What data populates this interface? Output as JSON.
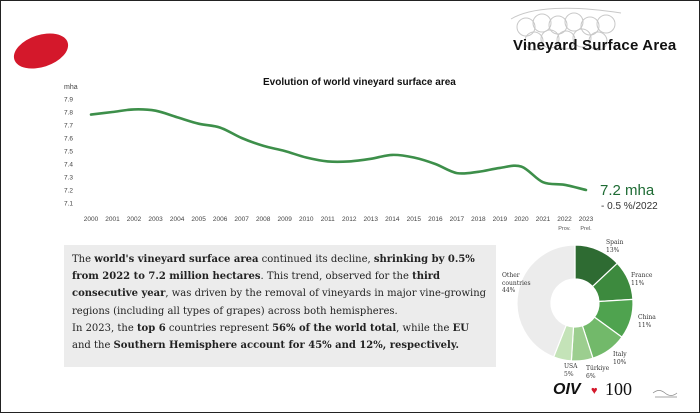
{
  "header": {
    "title": "Vineyard Surface Area"
  },
  "chart_data": {
    "type": "line",
    "title": "Evolution of world vineyard surface area",
    "ylabel": "mha",
    "xlabel": "",
    "x": [
      "2000",
      "2001",
      "2002",
      "2003",
      "2004",
      "2005",
      "2006",
      "2007",
      "2008",
      "2009",
      "2010",
      "2011",
      "2012",
      "2013",
      "2014",
      "2015",
      "2016",
      "2017",
      "2018",
      "2019",
      "2020",
      "2021",
      "2022",
      "2023"
    ],
    "x_sublabels": {
      "2022": "Prov.",
      "2023": "Prel."
    },
    "series": [
      {
        "values": [
          7.78,
          7.8,
          7.82,
          7.81,
          7.76,
          7.71,
          7.68,
          7.6,
          7.54,
          7.5,
          7.45,
          7.42,
          7.42,
          7.44,
          7.47,
          7.45,
          7.4,
          7.33,
          7.34,
          7.37,
          7.38,
          7.26,
          7.24,
          7.2
        ],
        "color": "#3d8f4a"
      }
    ],
    "ylim": [
      7.1,
      7.9
    ],
    "yticks": [
      "7.1",
      "7.2",
      "7.3",
      "7.4",
      "7.5",
      "7.6",
      "7.7",
      "7.8",
      "7.9"
    ],
    "grid": false,
    "annotation": {
      "value": "7.2 mha",
      "change": "- 0.5 %/2022"
    }
  },
  "donut": {
    "slices": [
      {
        "name": "Spain",
        "pct": "13%",
        "value": 13,
        "color": "#2e6b32"
      },
      {
        "name": "France",
        "pct": "11%",
        "value": 11,
        "color": "#3d8a3e"
      },
      {
        "name": "China",
        "pct": "11%",
        "value": 11,
        "color": "#4fa34f"
      },
      {
        "name": "Italy",
        "pct": "10%",
        "value": 10,
        "color": "#72b96a"
      },
      {
        "name": "Türkiye",
        "pct": "6%",
        "value": 6,
        "color": "#9cce8f"
      },
      {
        "name": "USA",
        "pct": "5%",
        "value": 5,
        "color": "#c4e3b8"
      },
      {
        "name": "Other countries",
        "pct": "44%",
        "value": 44,
        "color": "#ececec"
      }
    ],
    "labels": {
      "spain": "Spain",
      "spain_pct": "13%",
      "france": "France",
      "france_pct": "11%",
      "china": "China",
      "china_pct": "11%",
      "italy": "Italy",
      "italy_pct": "10%",
      "turkiye": "Türkiye",
      "turkiye_pct": "6%",
      "usa": "USA",
      "usa_pct": "5%",
      "other_1": "Other",
      "other_2": "countries",
      "other_pct": "44%"
    }
  },
  "text": {
    "p1": [
      {
        "t": "The ",
        "b": false
      },
      {
        "t": "world's vineyard surface area",
        "b": true
      },
      {
        "t": " continued its decline, ",
        "b": false
      },
      {
        "t": "shrinking by 0.5% from 2022 to 7.2 million hectares",
        "b": true
      },
      {
        "t": ". This trend, observed for the ",
        "b": false
      },
      {
        "t": "third consecutive year",
        "b": true
      },
      {
        "t": ", was driven by the removal of vineyards in major vine-growing regions (including all types of grapes) across both hemispheres.",
        "b": false
      }
    ],
    "p2": [
      {
        "t": "In 2023, the ",
        "b": false
      },
      {
        "t": "top 6",
        "b": true
      },
      {
        "t": " countries represent ",
        "b": false
      },
      {
        "t": "56% of the world total",
        "b": true
      },
      {
        "t": ", while the ",
        "b": false
      },
      {
        "t": "EU",
        "b": true
      },
      {
        "t": " and the ",
        "b": false
      },
      {
        "t": "Southern Hemisphere account for 45% and 12%, respectively.",
        "b": true
      }
    ]
  },
  "logo": {
    "oiv": "OIV",
    "hundred": "100"
  },
  "colors": {
    "brand_red": "#d4182b",
    "line_green": "#3d8f4a",
    "accent_text": "#1e6b34"
  }
}
